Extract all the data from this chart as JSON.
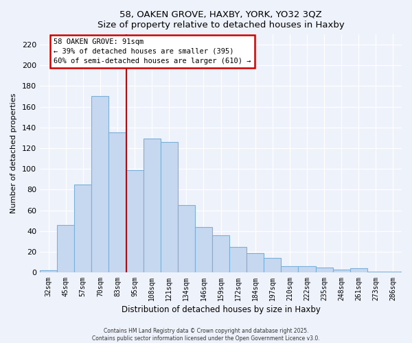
{
  "title": "58, OAKEN GROVE, HAXBY, YORK, YO32 3QZ",
  "subtitle": "Size of property relative to detached houses in Haxby",
  "xlabel": "Distribution of detached houses by size in Haxby",
  "ylabel": "Number of detached properties",
  "bar_labels": [
    "32sqm",
    "45sqm",
    "57sqm",
    "70sqm",
    "83sqm",
    "95sqm",
    "108sqm",
    "121sqm",
    "134sqm",
    "146sqm",
    "159sqm",
    "172sqm",
    "184sqm",
    "197sqm",
    "210sqm",
    "222sqm",
    "235sqm",
    "248sqm",
    "261sqm",
    "273sqm",
    "286sqm"
  ],
  "bar_heights": [
    2,
    46,
    85,
    170,
    135,
    99,
    129,
    126,
    65,
    44,
    36,
    25,
    19,
    14,
    6,
    6,
    5,
    3,
    4,
    1,
    1
  ],
  "bar_color": "#c5d8f0",
  "bar_edge_color": "#7ab0d8",
  "ylim": [
    0,
    230
  ],
  "yticks": [
    0,
    20,
    40,
    60,
    80,
    100,
    120,
    140,
    160,
    180,
    200,
    220
  ],
  "annotation_line1": "58 OAKEN GROVE: 91sqm",
  "annotation_line2": "← 39% of detached houses are smaller (395)",
  "annotation_line3": "60% of semi-detached houses are larger (610) →",
  "marker_color": "#cc0000",
  "background_color": "#eef2fb",
  "grid_color": "#ffffff",
  "footer1": "Contains HM Land Registry data © Crown copyright and database right 2025.",
  "footer2": "Contains public sector information licensed under the Open Government Licence v3.0."
}
